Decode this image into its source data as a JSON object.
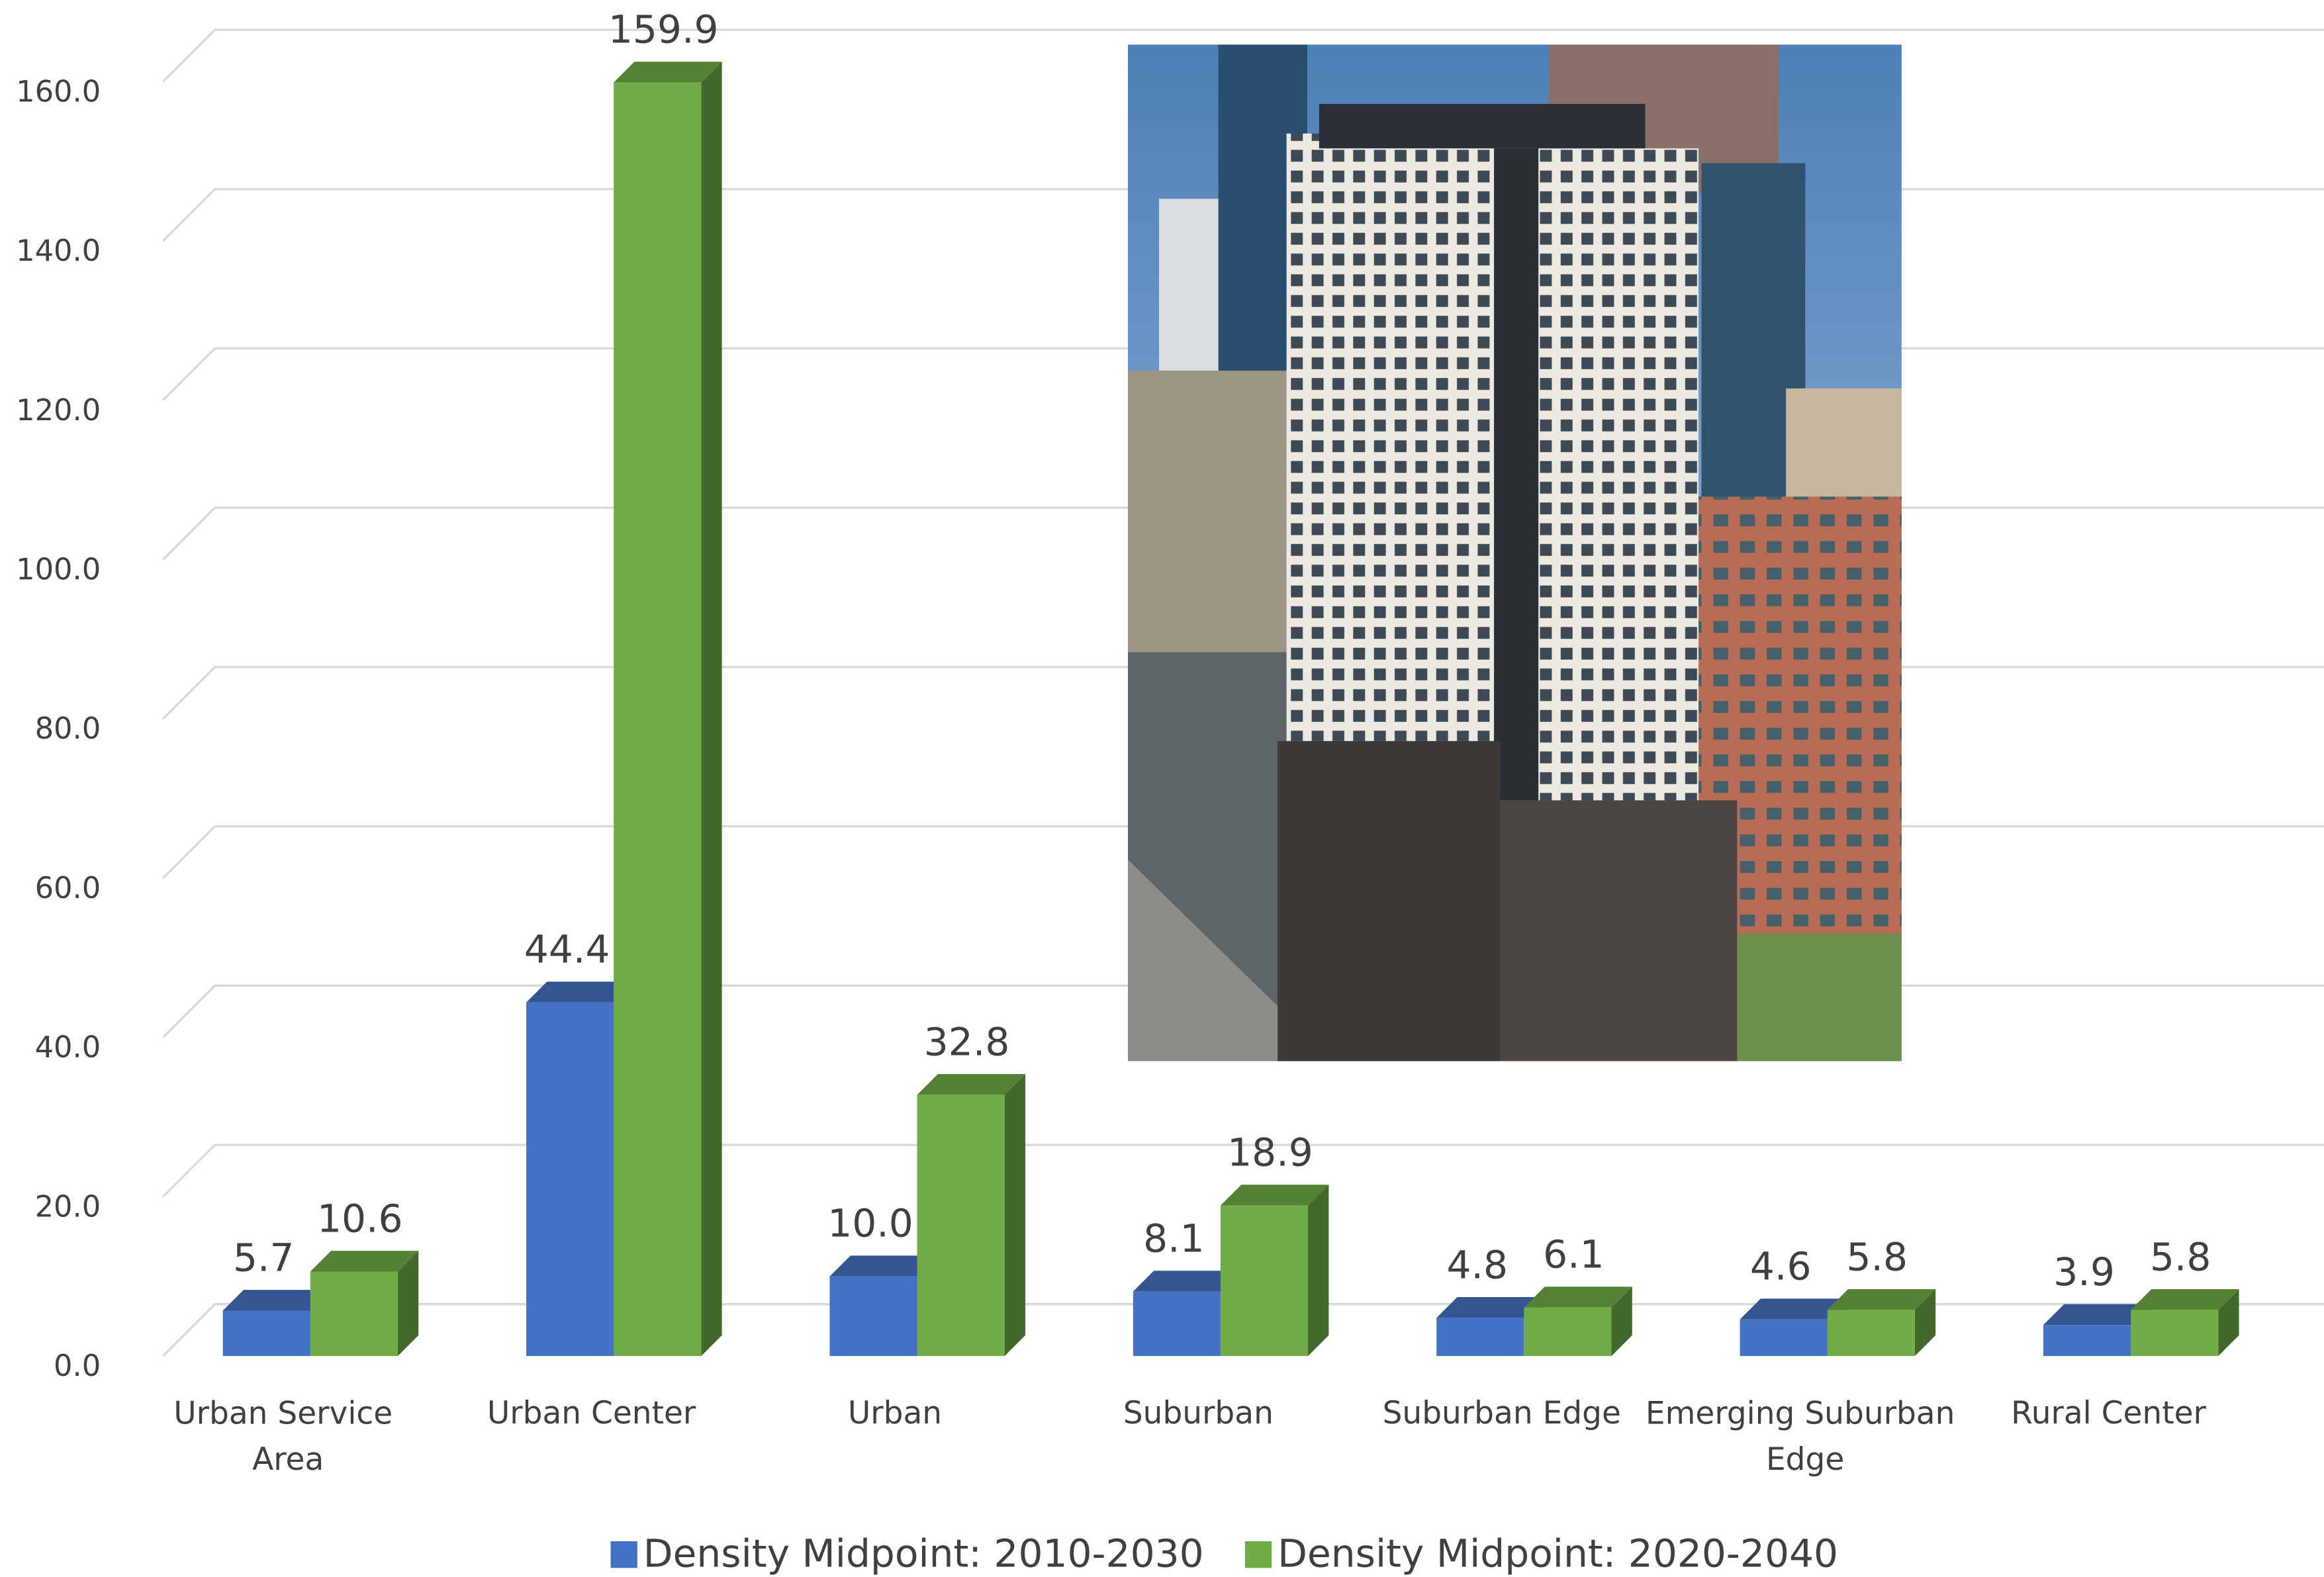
{
  "chart_data": {
    "type": "bar3d",
    "categories": [
      "Urban Service Area",
      "Urban Center",
      "Urban",
      "Suburban",
      "Suburban Edge",
      "Emerging Suburban Edge",
      "Rural Center"
    ],
    "series": [
      {
        "name": "Density Midpoint: 2010-2030",
        "color": "#4472c4",
        "values": [
          5.7,
          44.4,
          10.0,
          8.1,
          4.8,
          4.6,
          3.9
        ],
        "value_labels": [
          "5.7",
          "44.4",
          "10.0",
          "8.1",
          "4.8",
          "4.6",
          "3.9"
        ]
      },
      {
        "name": "Density Midpoint: 2020-2040",
        "color": "#70ad47",
        "values": [
          10.6,
          159.9,
          32.8,
          18.9,
          6.1,
          5.8,
          5.8
        ],
        "value_labels": [
          "10.6",
          "159.9",
          "32.8",
          "18.9",
          "6.1",
          "5.8",
          "5.8"
        ]
      }
    ],
    "ylim": [
      0,
      160
    ],
    "yticks": [
      {
        "value": 0,
        "label": "0.0"
      },
      {
        "value": 20,
        "label": "20.0"
      },
      {
        "value": 40,
        "label": "40.0"
      },
      {
        "value": 60,
        "label": "60.0"
      },
      {
        "value": 80,
        "label": "80.0"
      },
      {
        "value": 100,
        "label": "100.0"
      },
      {
        "value": 120,
        "label": "120.0"
      },
      {
        "value": 140,
        "label": "140.0"
      },
      {
        "value": 160,
        "label": "160.0"
      }
    ],
    "grid": true,
    "legend": "bottom"
  }
}
